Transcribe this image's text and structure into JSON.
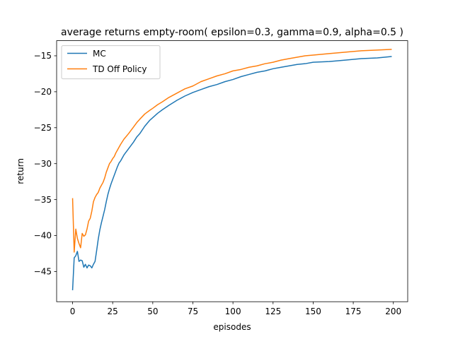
{
  "chart_data": {
    "type": "line",
    "title": "average returns empty-room( epsilon=0.3, gamma=0.9, alpha=0.5 )",
    "xlabel": "episodes",
    "ylabel": "return",
    "xlim": [
      -9.95,
      208.95
    ],
    "ylim": [
      -49.2,
      -12.9
    ],
    "xticks": [
      0,
      25,
      50,
      75,
      100,
      125,
      150,
      175,
      200
    ],
    "yticks": [
      -45,
      -40,
      -35,
      -30,
      -25,
      -20,
      -15
    ],
    "xtick_labels": [
      "0",
      "25",
      "50",
      "75",
      "100",
      "125",
      "150",
      "175",
      "200"
    ],
    "ytick_labels": [
      "−45",
      "−40",
      "−35",
      "−30",
      "−25",
      "−20",
      "−15"
    ],
    "grid": false,
    "legend": {
      "placement": "top-left"
    },
    "series": [
      {
        "name": "MC",
        "color": "#1f77b4",
        "points": [
          [
            0,
            -47.6
          ],
          [
            1,
            -43.1
          ],
          [
            2,
            -42.8
          ],
          [
            3,
            -42.2
          ],
          [
            4,
            -43.6
          ],
          [
            5,
            -43.4
          ],
          [
            6,
            -43.5
          ],
          [
            7,
            -44.4
          ],
          [
            8,
            -44.0
          ],
          [
            9,
            -44.5
          ],
          [
            10,
            -44.1
          ],
          [
            11,
            -44.2
          ],
          [
            12,
            -44.5
          ],
          [
            13,
            -44.0
          ],
          [
            14,
            -43.6
          ],
          [
            15,
            -42.1
          ],
          [
            16,
            -40.5
          ],
          [
            17,
            -39.2
          ],
          [
            18,
            -38.2
          ],
          [
            19,
            -37.3
          ],
          [
            20,
            -36.4
          ],
          [
            21,
            -35.3
          ],
          [
            22,
            -34.3
          ],
          [
            23,
            -33.5
          ],
          [
            24,
            -32.8
          ],
          [
            25,
            -32.2
          ],
          [
            26,
            -31.6
          ],
          [
            27,
            -31.0
          ],
          [
            28,
            -30.4
          ],
          [
            29,
            -29.9
          ],
          [
            30,
            -29.6
          ],
          [
            32,
            -28.8
          ],
          [
            35,
            -27.9
          ],
          [
            38,
            -27.0
          ],
          [
            40,
            -26.3
          ],
          [
            42,
            -25.8
          ],
          [
            45,
            -24.8
          ],
          [
            48,
            -24.0
          ],
          [
            50,
            -23.6
          ],
          [
            53,
            -23.0
          ],
          [
            56,
            -22.5
          ],
          [
            60,
            -21.9
          ],
          [
            65,
            -21.2
          ],
          [
            70,
            -20.6
          ],
          [
            75,
            -20.1
          ],
          [
            80,
            -19.7
          ],
          [
            85,
            -19.3
          ],
          [
            90,
            -19.0
          ],
          [
            95,
            -18.6
          ],
          [
            100,
            -18.3
          ],
          [
            105,
            -17.9
          ],
          [
            110,
            -17.6
          ],
          [
            115,
            -17.3
          ],
          [
            120,
            -17.1
          ],
          [
            125,
            -16.8
          ],
          [
            130,
            -16.6
          ],
          [
            135,
            -16.4
          ],
          [
            140,
            -16.2
          ],
          [
            145,
            -16.1
          ],
          [
            150,
            -15.9
          ],
          [
            160,
            -15.8
          ],
          [
            170,
            -15.6
          ],
          [
            180,
            -15.4
          ],
          [
            190,
            -15.3
          ],
          [
            199,
            -15.1
          ]
        ]
      },
      {
        "name": "TD Off Policy",
        "color": "#ff7f0e",
        "points": [
          [
            0,
            -34.8
          ],
          [
            1,
            -42.3
          ],
          [
            2,
            -39.1
          ],
          [
            3,
            -40.4
          ],
          [
            4,
            -41.1
          ],
          [
            5,
            -41.7
          ],
          [
            6,
            -39.7
          ],
          [
            7,
            -40.1
          ],
          [
            8,
            -39.9
          ],
          [
            9,
            -39.1
          ],
          [
            10,
            -38.0
          ],
          [
            11,
            -37.6
          ],
          [
            12,
            -36.6
          ],
          [
            13,
            -35.3
          ],
          [
            14,
            -34.7
          ],
          [
            15,
            -34.3
          ],
          [
            16,
            -34.0
          ],
          [
            17,
            -33.4
          ],
          [
            18,
            -33.0
          ],
          [
            19,
            -32.6
          ],
          [
            20,
            -32.0
          ],
          [
            21,
            -31.2
          ],
          [
            22,
            -30.6
          ],
          [
            23,
            -30.0
          ],
          [
            24,
            -29.7
          ],
          [
            25,
            -29.3
          ],
          [
            26,
            -29.0
          ],
          [
            27,
            -28.5
          ],
          [
            28,
            -28.1
          ],
          [
            29,
            -27.7
          ],
          [
            30,
            -27.3
          ],
          [
            32,
            -26.6
          ],
          [
            35,
            -25.8
          ],
          [
            38,
            -24.9
          ],
          [
            40,
            -24.3
          ],
          [
            42,
            -23.8
          ],
          [
            45,
            -23.1
          ],
          [
            48,
            -22.6
          ],
          [
            50,
            -22.3
          ],
          [
            53,
            -21.8
          ],
          [
            56,
            -21.4
          ],
          [
            60,
            -20.8
          ],
          [
            65,
            -20.2
          ],
          [
            70,
            -19.6
          ],
          [
            75,
            -19.2
          ],
          [
            80,
            -18.6
          ],
          [
            85,
            -18.2
          ],
          [
            90,
            -17.8
          ],
          [
            95,
            -17.5
          ],
          [
            100,
            -17.1
          ],
          [
            105,
            -16.9
          ],
          [
            110,
            -16.6
          ],
          [
            115,
            -16.4
          ],
          [
            120,
            -16.1
          ],
          [
            125,
            -15.9
          ],
          [
            130,
            -15.6
          ],
          [
            135,
            -15.4
          ],
          [
            140,
            -15.2
          ],
          [
            145,
            -15.0
          ],
          [
            150,
            -14.9
          ],
          [
            160,
            -14.7
          ],
          [
            170,
            -14.5
          ],
          [
            180,
            -14.3
          ],
          [
            190,
            -14.2
          ],
          [
            199,
            -14.1
          ]
        ]
      }
    ]
  }
}
